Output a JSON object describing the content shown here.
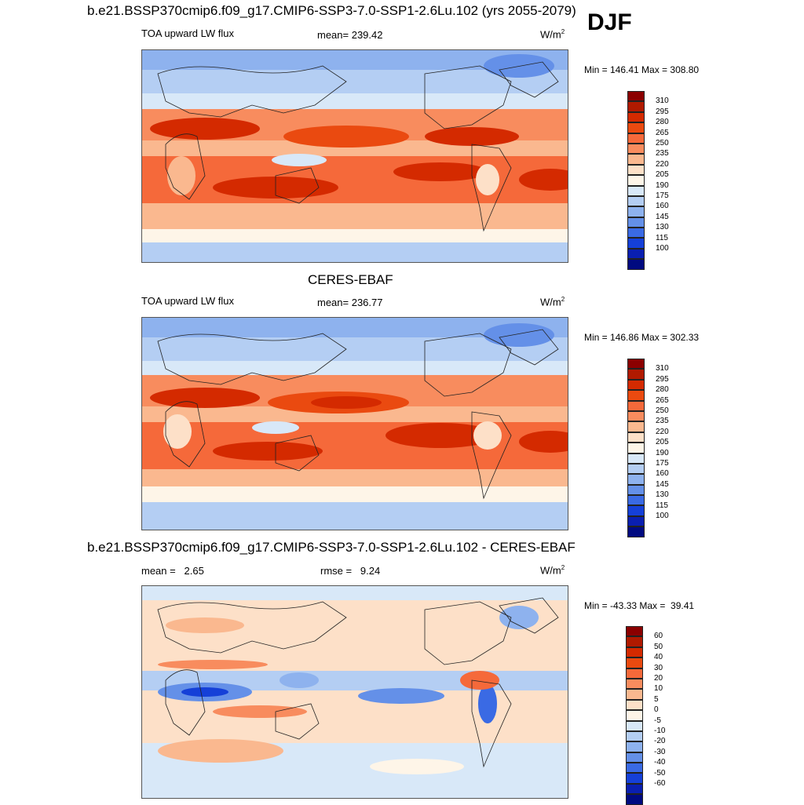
{
  "header": {
    "title": "b.e21.BSSP370cmip6.f09_g17.CMIP6-SSP3-7.0-SSP1-2.6Lu.102 (yrs 2055-2079)",
    "season": "DJF"
  },
  "panel1": {
    "variable": "TOA upward LW flux",
    "mean": "mean= 239.42",
    "units_base": "W/m",
    "units_exp": "2",
    "minmax": "Min = 146.41 Max = 308.80",
    "colorbar_labels": [
      "310",
      "295",
      "280",
      "265",
      "250",
      "235",
      "220",
      "205",
      "190",
      "175",
      "160",
      "145",
      "130",
      "115",
      "100"
    ]
  },
  "panel2": {
    "heading": "CERES-EBAF",
    "variable": "TOA upward LW flux",
    "mean": "mean= 236.77",
    "units_base": "W/m",
    "units_exp": "2",
    "minmax": "Min = 146.86 Max = 302.33",
    "colorbar_labels": [
      "310",
      "295",
      "280",
      "265",
      "250",
      "235",
      "220",
      "205",
      "190",
      "175",
      "160",
      "145",
      "130",
      "115",
      "100"
    ]
  },
  "panel3": {
    "heading": "b.e21.BSSP370cmip6.f09_g17.CMIP6-SSP3-7.0-SSP1-2.6Lu.102 - CERES-EBAF",
    "mean": "mean =   2.65",
    "rmse": "rmse =   9.24",
    "units_base": "W/m",
    "units_exp": "2",
    "minmax": "Min = -43.33 Max =  39.41",
    "colorbar_labels": [
      "60",
      "50",
      "40",
      "30",
      "20",
      "10",
      "5",
      "0",
      "-5",
      "-10",
      "-20",
      "-30",
      "-40",
      "-50",
      "-60"
    ]
  },
  "colors": {
    "abs_scale": [
      "#8b0000",
      "#b01a00",
      "#d42a00",
      "#ea4a10",
      "#f5693a",
      "#f88c5e",
      "#fab88f",
      "#fde0c8",
      "#fef5e8",
      "#d8e8f8",
      "#b4cef3",
      "#8eb2ee",
      "#6490e8",
      "#3a6ae4",
      "#1540d8",
      "#0a1fb0",
      "#000a80"
    ],
    "diff_scale": [
      "#8b0000",
      "#b01a00",
      "#d42a00",
      "#ea4a10",
      "#f5693a",
      "#f88c5e",
      "#fab88f",
      "#fde0c8",
      "#fef5e8",
      "#d8e8f8",
      "#b4cef3",
      "#8eb2ee",
      "#6490e8",
      "#3a6ae4",
      "#1540d8",
      "#0a1fb0",
      "#000a80"
    ]
  }
}
